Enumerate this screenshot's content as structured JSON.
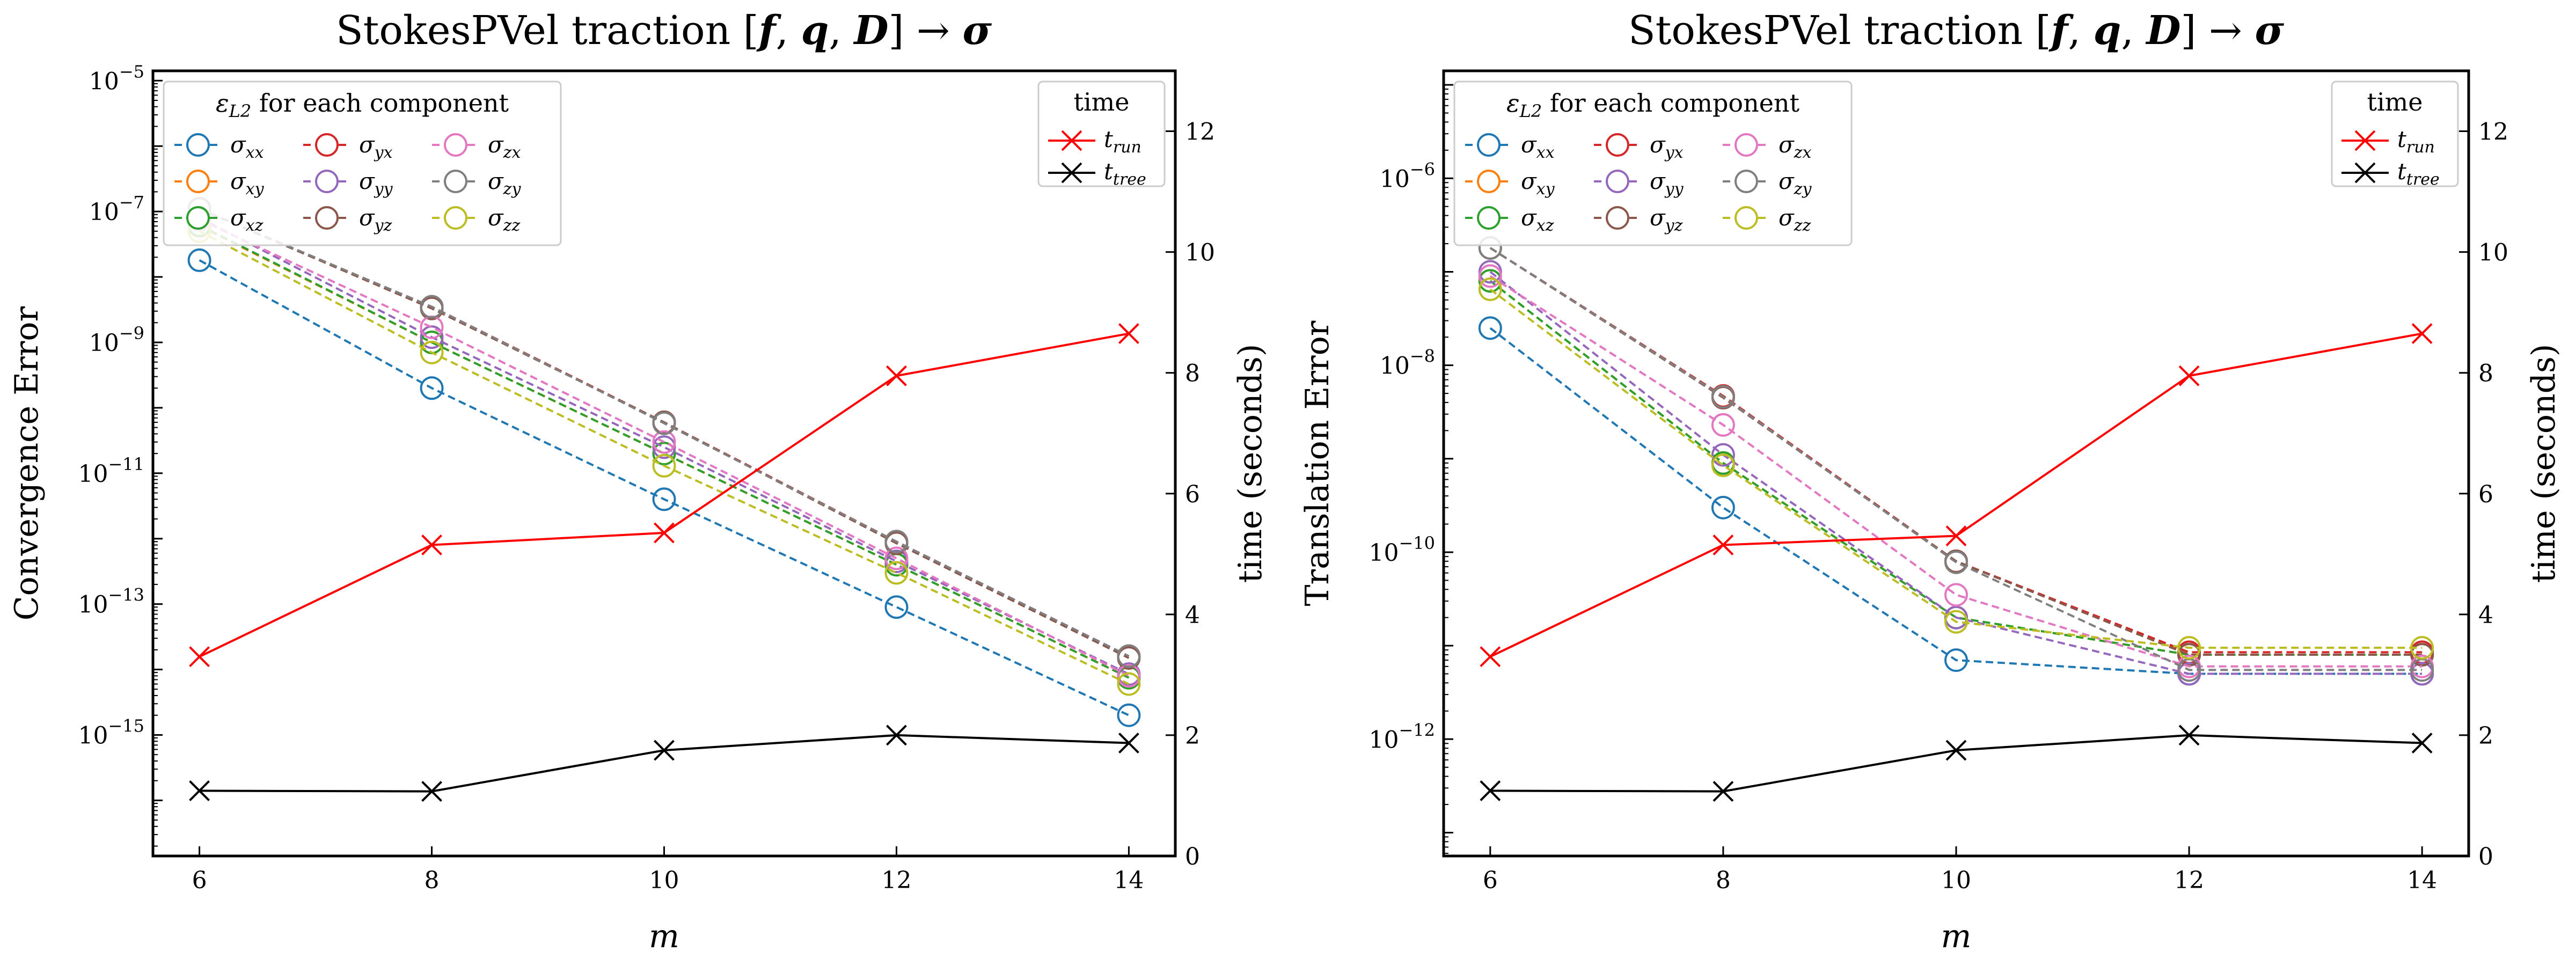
{
  "chart_data": [
    {
      "type": "line",
      "title": "StokesPVel traction [f, q, D] → σ",
      "title_parts": [
        "StokesPVel traction [",
        "f",
        ", ",
        "q",
        ", ",
        "D",
        "] → ",
        "σ"
      ],
      "xlabel": "m",
      "ylabel": "Convergence Error",
      "y2label": "time (seconds)",
      "yscale": "log",
      "x": [
        6,
        8,
        10,
        12,
        14
      ],
      "x_ticks": [
        "6",
        "8",
        "10",
        "12",
        "14"
      ],
      "xlim": [
        5.6,
        14.4
      ],
      "ylim_log10": [
        -16.85,
        -4.85
      ],
      "y_ticks": [
        {
          "base": "10",
          "exp": "−15",
          "log": -15
        },
        {
          "base": "10",
          "exp": "−13",
          "log": -13
        },
        {
          "base": "10",
          "exp": "−11",
          "log": -11
        },
        {
          "base": "10",
          "exp": "−9",
          "log": -9
        },
        {
          "base": "10",
          "exp": "−7",
          "log": -7
        },
        {
          "base": "10",
          "exp": "−5",
          "log": -5
        }
      ],
      "y2lim": [
        0,
        13
      ],
      "y2_ticks": [
        "0",
        "2",
        "4",
        "6",
        "8",
        "10",
        "12"
      ],
      "legend_title": "ε_L2 for each component",
      "legend_title_parts": [
        "ε",
        "L2",
        " for each component"
      ],
      "legend_position": "upper-left",
      "series": [
        {
          "name": "σxx",
          "sym": "σ",
          "sub": "xx",
          "color": "#1f77b4",
          "values": [
            1.8e-08,
            2e-10,
            4e-12,
            9e-14,
            2e-15
          ]
        },
        {
          "name": "σxy",
          "sym": "σ",
          "sub": "xy",
          "color": "#ff7f0e",
          "values": [
            6e-08,
            1e-09,
            2e-11,
            4e-13,
            7.5e-15
          ]
        },
        {
          "name": "σxz",
          "sym": "σ",
          "sub": "xz",
          "color": "#2ca02c",
          "values": [
            6.2e-08,
            1e-09,
            2e-11,
            4e-13,
            7.5e-15
          ]
        },
        {
          "name": "σyx",
          "sym": "σ",
          "sub": "yx",
          "color": "#d62728",
          "values": [
            1.1e-07,
            3.5e-09,
            6e-11,
            9e-13,
            1.6e-14
          ]
        },
        {
          "name": "σyy",
          "sym": "σ",
          "sub": "yy",
          "color": "#9467bd",
          "values": [
            8e-08,
            1.2e-09,
            2.5e-11,
            4.5e-13,
            8.5e-15
          ]
        },
        {
          "name": "σyz",
          "sym": "σ",
          "sub": "yz",
          "color": "#8c564b",
          "values": [
            1.1e-07,
            3.3e-09,
            6e-11,
            8.5e-13,
            1.5e-14
          ]
        },
        {
          "name": "σzx",
          "sym": "σ",
          "sub": "zx",
          "color": "#e377c2",
          "values": [
            7.5e-08,
            1.7e-09,
            3e-11,
            5e-13,
            8e-15
          ]
        },
        {
          "name": "σzy",
          "sym": "σ",
          "sub": "zy",
          "color": "#7f7f7f",
          "values": [
            1.1e-07,
            3.5e-09,
            5.8e-11,
            9e-13,
            1.6e-14
          ]
        },
        {
          "name": "σzz",
          "sym": "σ",
          "sub": "zz",
          "color": "#bcbd22",
          "values": [
            5e-08,
            7e-10,
            1.3e-11,
            3e-13,
            6e-15
          ]
        }
      ],
      "time_legend_title": "time",
      "time_legend_position": "upper-right",
      "time_series": [
        {
          "name": "t_run",
          "sym": "t",
          "sub": "run",
          "color": "#ff0000",
          "values": [
            3.3,
            5.15,
            5.35,
            7.95,
            8.65
          ]
        },
        {
          "name": "t_tree",
          "sym": "t",
          "sub": "tree",
          "color": "#000000",
          "values": [
            1.08,
            1.07,
            1.75,
            2.0,
            1.87
          ]
        }
      ]
    },
    {
      "type": "line",
      "title": "StokesPVel traction [f, q, D] → σ",
      "title_parts": [
        "StokesPVel traction [",
        "f",
        ", ",
        "q",
        ", ",
        "D",
        "] → ",
        "σ"
      ],
      "xlabel": "m",
      "ylabel": "Translation Error",
      "y2label": "time (seconds)",
      "yscale": "log",
      "x": [
        6,
        8,
        10,
        12,
        14
      ],
      "x_ticks": [
        "6",
        "8",
        "10",
        "12",
        "14"
      ],
      "xlim": [
        5.6,
        14.4
      ],
      "ylim_log10": [
        -13.25,
        -4.85
      ],
      "y_ticks": [
        {
          "base": "10",
          "exp": "−12",
          "log": -12
        },
        {
          "base": "10",
          "exp": "−10",
          "log": -10
        },
        {
          "base": "10",
          "exp": "−8",
          "log": -8
        },
        {
          "base": "10",
          "exp": "−6",
          "log": -6
        }
      ],
      "y2lim": [
        0,
        13
      ],
      "y2_ticks": [
        "0",
        "2",
        "4",
        "6",
        "8",
        "10",
        "12"
      ],
      "legend_title": "ε_L2 for each component",
      "legend_title_parts": [
        "ε",
        "L2",
        " for each component"
      ],
      "legend_position": "upper-left",
      "series": [
        {
          "name": "σxx",
          "sym": "σ",
          "sub": "xx",
          "color": "#1f77b4",
          "values": [
            2.5e-08,
            3e-10,
            7e-12,
            5e-12,
            5e-12
          ]
        },
        {
          "name": "σxy",
          "sym": "σ",
          "sub": "xy",
          "color": "#ff7f0e",
          "values": [
            8e-08,
            9e-10,
            2e-11,
            8e-12,
            8e-12
          ]
        },
        {
          "name": "σxz",
          "sym": "σ",
          "sub": "xz",
          "color": "#2ca02c",
          "values": [
            8e-08,
            9e-10,
            2e-11,
            8e-12,
            8e-12
          ]
        },
        {
          "name": "σyx",
          "sym": "σ",
          "sub": "yx",
          "color": "#d62728",
          "values": [
            1.8e-07,
            4.7e-09,
            8e-11,
            8.5e-12,
            8.5e-12
          ]
        },
        {
          "name": "σyy",
          "sym": "σ",
          "sub": "yy",
          "color": "#9467bd",
          "values": [
            1e-07,
            1.1e-09,
            2e-11,
            5e-12,
            5e-12
          ]
        },
        {
          "name": "σyz",
          "sym": "σ",
          "sub": "yz",
          "color": "#8c564b",
          "values": [
            1.8e-07,
            4.5e-09,
            8e-11,
            8e-12,
            8e-12
          ]
        },
        {
          "name": "σzx",
          "sym": "σ",
          "sub": "zx",
          "color": "#e377c2",
          "values": [
            9e-08,
            2.3e-09,
            3.5e-11,
            6e-12,
            6e-12
          ]
        },
        {
          "name": "σzy",
          "sym": "σ",
          "sub": "zy",
          "color": "#7f7f7f",
          "values": [
            1.8e-07,
            4.6e-09,
            7.8e-11,
            5.5e-12,
            5.5e-12
          ]
        },
        {
          "name": "σzz",
          "sym": "σ",
          "sub": "zz",
          "color": "#bcbd22",
          "values": [
            6.5e-08,
            8.5e-10,
            1.8e-11,
            9.5e-12,
            9.5e-12
          ]
        }
      ],
      "time_legend_title": "time",
      "time_legend_position": "upper-right",
      "time_series": [
        {
          "name": "t_run",
          "sym": "t",
          "sub": "run",
          "color": "#ff0000",
          "values": [
            3.3,
            5.15,
            5.3,
            7.95,
            8.65
          ]
        },
        {
          "name": "t_tree",
          "sym": "t",
          "sub": "tree",
          "color": "#000000",
          "values": [
            1.08,
            1.07,
            1.75,
            2.0,
            1.87
          ]
        }
      ]
    }
  ]
}
